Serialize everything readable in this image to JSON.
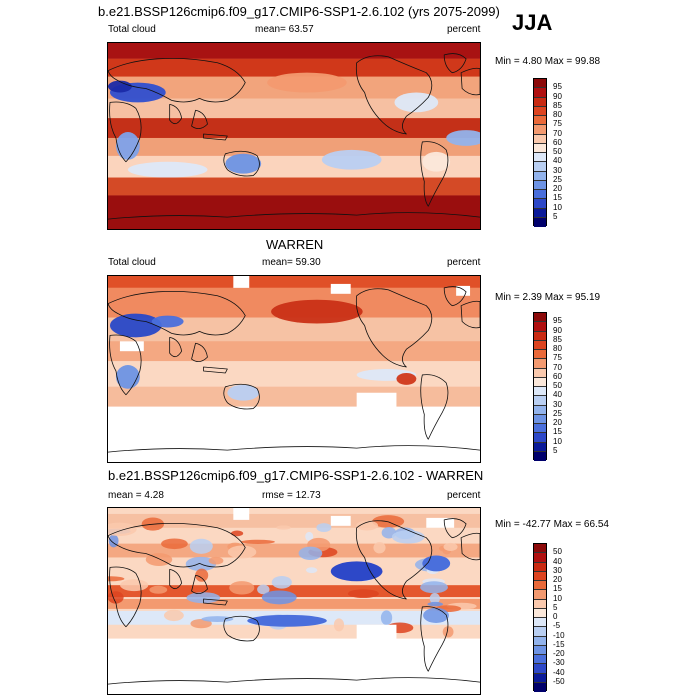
{
  "season": "JJA",
  "panels": [
    {
      "title": "b.e21.BSSP126cmip6.f09_g17.CMIP6-SSP1-2.6.102 (yrs 2075-2099)",
      "left_label": "Total cloud",
      "mid_label": "mean=  63.57",
      "right_label": "percent",
      "minmax": "Min =   4.80 Max =  99.88",
      "colorbar_labels": [
        "95",
        "90",
        "85",
        "80",
        "75",
        "70",
        "60",
        "50",
        "40",
        "30",
        "25",
        "20",
        "15",
        "10",
        "5"
      ],
      "colorbar_colors": [
        "#8c0a0a",
        "#b01010",
        "#c92a12",
        "#dd4420",
        "#ea6a3a",
        "#f39a70",
        "#fac9ad",
        "#fbe8da",
        "#dde8f8",
        "#b9cff2",
        "#92b3ec",
        "#6d93e4",
        "#4a6fdc",
        "#2d48c8",
        "#0a1a99",
        "#00006b"
      ],
      "map_style": "full"
    },
    {
      "title": "WARREN",
      "left_label": "Total cloud",
      "mid_label": "mean=  59.30",
      "right_label": "percent",
      "minmax": "Min =   2.39 Max =  95.19",
      "colorbar_labels": [
        "95",
        "90",
        "85",
        "80",
        "75",
        "70",
        "60",
        "50",
        "40",
        "30",
        "25",
        "20",
        "15",
        "10",
        "5"
      ],
      "colorbar_colors": [
        "#8c0a0a",
        "#b01010",
        "#c92a12",
        "#dd4420",
        "#ea6a3a",
        "#f39a70",
        "#fac9ad",
        "#fbe8da",
        "#dde8f8",
        "#b9cff2",
        "#92b3ec",
        "#6d93e4",
        "#4a6fdc",
        "#2d48c8",
        "#0a1a99",
        "#00006b"
      ],
      "map_style": "obs"
    },
    {
      "title": "b.e21.BSSP126cmip6.f09_g17.CMIP6-SSP1-2.6.102 - WARREN",
      "left_label": "mean =   4.28",
      "mid_label": "rmse =  12.73",
      "right_label": "percent",
      "minmax": "Min = -42.77 Max =  66.54",
      "colorbar_labels": [
        "50",
        "40",
        "30",
        "20",
        "15",
        "10",
        "5",
        "0",
        "-5",
        "-10",
        "-15",
        "-20",
        "-30",
        "-40",
        "-50"
      ],
      "colorbar_colors": [
        "#8c0a0a",
        "#b01010",
        "#c92a12",
        "#dd4420",
        "#ea6a3a",
        "#f39a70",
        "#fac9ad",
        "#fbe8da",
        "#dde8f8",
        "#b9cff2",
        "#92b3ec",
        "#6d93e4",
        "#4a6fdc",
        "#2d48c8",
        "#0a1a99",
        "#00006b"
      ],
      "map_style": "diff"
    }
  ]
}
